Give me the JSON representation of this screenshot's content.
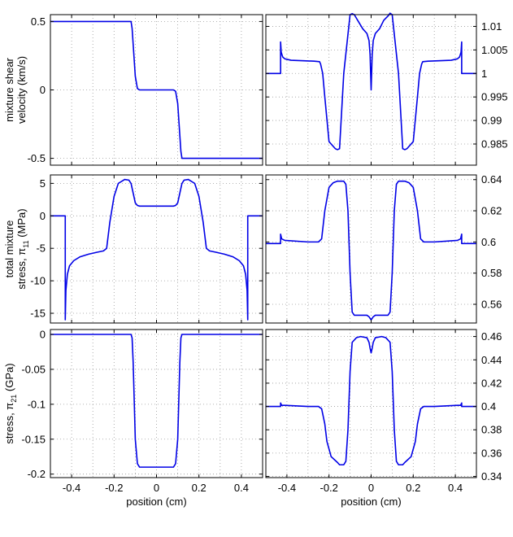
{
  "chart_data": [
    {
      "id": "p1",
      "type": "line",
      "ylabel_lines": [
        "mixture shear",
        "velocity (km/s)"
      ],
      "xlim": [
        -0.5,
        0.5
      ],
      "ylim": [
        -0.55,
        0.55
      ],
      "yticks": [
        -0.5,
        0,
        0.5
      ],
      "ytick_labels": [
        "-0.5",
        "0",
        "0.5"
      ],
      "y_axis_side": "left",
      "grid": true,
      "color": "#0000e6",
      "series": [
        {
          "x": [
            -0.5,
            -0.12,
            -0.115,
            -0.1,
            -0.09,
            -0.08,
            0.08,
            0.09,
            0.1,
            0.115,
            0.12,
            0.5
          ],
          "y": [
            0.5,
            0.5,
            0.45,
            0.1,
            0.01,
            0,
            0,
            -0.01,
            -0.1,
            -0.45,
            -0.5,
            -0.5
          ]
        }
      ]
    },
    {
      "id": "p2",
      "type": "line",
      "xlim": [
        -0.5,
        0.5
      ],
      "ylim": [
        0.9805,
        1.0125
      ],
      "yticks": [
        0.985,
        0.99,
        0.995,
        1,
        1.005,
        1.01
      ],
      "ytick_labels": [
        "0.985",
        "0.99",
        "0.995",
        "1",
        "1.005",
        "1.01"
      ],
      "y_axis_side": "right",
      "grid": true,
      "color": "#0000e6",
      "series": [
        {
          "x": [
            -0.5,
            -0.43,
            -0.43,
            -0.427,
            -0.42,
            -0.41,
            -0.38,
            -0.32,
            -0.27,
            -0.245,
            -0.24,
            -0.23,
            -0.22,
            -0.2,
            -0.17,
            -0.16,
            -0.15,
            -0.13,
            -0.1,
            -0.09,
            -0.08,
            -0.06,
            -0.04,
            -0.02,
            -0.01,
            -0.005,
            0,
            0.005,
            0.01,
            0.02,
            0.04,
            0.06,
            0.08,
            0.09,
            0.1,
            0.13,
            0.15,
            0.16,
            0.17,
            0.2,
            0.22,
            0.23,
            0.24,
            0.245,
            0.27,
            0.32,
            0.38,
            0.41,
            0.42,
            0.427,
            0.43,
            0.43,
            0.5
          ],
          "y": [
            1,
            1,
            1.0067,
            1.0045,
            1.0035,
            1.0031,
            1.0028,
            1.0027,
            1.0026,
            1.0025,
            1.002,
            1.0,
            0.995,
            0.9855,
            0.984,
            0.9838,
            0.984,
            1.0,
            1.0125,
            1.0127,
            1.0125,
            1.011,
            1.0095,
            1.0085,
            1.007,
            1.004,
            0.9965,
            1.004,
            1.007,
            1.0085,
            1.0095,
            1.0113,
            1.0122,
            1.0128,
            1.0125,
            1.0,
            0.984,
            0.9838,
            0.984,
            0.9855,
            0.995,
            1.0,
            1.002,
            1.0025,
            1.0026,
            1.0027,
            1.0028,
            1.0031,
            1.0035,
            1.0045,
            1.0067,
            1,
            1
          ]
        }
      ]
    },
    {
      "id": "p3",
      "type": "line",
      "ylabel_lines": [
        "total mixture",
        "stress, π",
        "11",
        " (MPa)"
      ],
      "xlim": [
        -0.5,
        0.5
      ],
      "ylim": [
        -16.5,
        6.3
      ],
      "yticks": [
        -15,
        -10,
        -5,
        0,
        5
      ],
      "ytick_labels": [
        "-15",
        "-10",
        "-5",
        "0",
        "5"
      ],
      "y_axis_side": "left",
      "grid": true,
      "color": "#0000e6",
      "series": [
        {
          "x": [
            -0.5,
            -0.43,
            -0.43,
            -0.427,
            -0.42,
            -0.41,
            -0.39,
            -0.36,
            -0.32,
            -0.28,
            -0.25,
            -0.235,
            -0.22,
            -0.2,
            -0.18,
            -0.16,
            -0.15,
            -0.13,
            -0.12,
            -0.11,
            -0.1,
            -0.09,
            -0.08,
            0.08,
            0.09,
            0.1,
            0.11,
            0.12,
            0.13,
            0.15,
            0.16,
            0.18,
            0.2,
            0.22,
            0.235,
            0.25,
            0.28,
            0.32,
            0.36,
            0.39,
            0.41,
            0.42,
            0.427,
            0.43,
            0.43,
            0.5
          ],
          "y": [
            0,
            0,
            -16,
            -11.5,
            -9,
            -7.7,
            -6.9,
            -6.3,
            -5.9,
            -5.6,
            -5.4,
            -5,
            -1,
            3,
            5,
            5.4,
            5.6,
            5.5,
            5,
            3.5,
            2,
            1.6,
            1.5,
            1.5,
            1.6,
            2,
            3.5,
            5,
            5.5,
            5.6,
            5.4,
            5,
            3,
            -1,
            -5,
            -5.4,
            -5.6,
            -5.9,
            -6.3,
            -6.9,
            -7.7,
            -9,
            -11.5,
            -16,
            0,
            0
          ]
        }
      ]
    },
    {
      "id": "p4",
      "type": "line",
      "ylabel_lines": [
        "stress, π",
        "21",
        " (GPa)"
      ],
      "xlim": [
        -0.5,
        0.5
      ],
      "ylim": [
        -0.205,
        0.007
      ],
      "yticks": [
        -0.2,
        -0.15,
        -0.1,
        -0.05,
        0
      ],
      "ytick_labels": [
        "-0.2",
        "-0.15",
        "-0.1",
        "-0.05",
        "0"
      ],
      "y_axis_side": "left",
      "grid": true,
      "color": "#0000e6",
      "series": [
        {
          "x": [
            -0.5,
            -0.12,
            -0.115,
            -0.11,
            -0.1,
            -0.09,
            -0.08,
            0.08,
            0.09,
            0.1,
            0.11,
            0.115,
            0.12,
            0.5
          ],
          "y": [
            0,
            0,
            -0.005,
            -0.04,
            -0.15,
            -0.185,
            -0.19,
            -0.19,
            -0.185,
            -0.15,
            -0.04,
            -0.005,
            0,
            0
          ]
        }
      ]
    },
    {
      "id": "p5",
      "type": "line",
      "xlim": [
        -0.5,
        0.5
      ],
      "ylim": [
        0.548,
        0.643
      ],
      "yticks": [
        0.56,
        0.58,
        0.6,
        0.62,
        0.64
      ],
      "ytick_labels": [
        "0.56",
        "0.58",
        "0.6",
        "0.62",
        "0.64"
      ],
      "y_axis_side": "right",
      "grid": true,
      "color": "#0000e6",
      "series": [
        {
          "x": [
            -0.5,
            -0.43,
            -0.43,
            -0.425,
            -0.41,
            -0.3,
            -0.25,
            -0.235,
            -0.22,
            -0.2,
            -0.18,
            -0.16,
            -0.13,
            -0.12,
            -0.11,
            -0.1,
            -0.09,
            -0.08,
            -0.02,
            -0.01,
            0,
            0.01,
            0.02,
            0.08,
            0.09,
            0.1,
            0.11,
            0.12,
            0.13,
            0.16,
            0.18,
            0.2,
            0.22,
            0.235,
            0.25,
            0.3,
            0.41,
            0.425,
            0.43,
            0.43,
            0.5
          ],
          "y": [
            0.599,
            0.599,
            0.605,
            0.602,
            0.601,
            0.6,
            0.6,
            0.602,
            0.62,
            0.635,
            0.638,
            0.639,
            0.639,
            0.637,
            0.62,
            0.58,
            0.555,
            0.553,
            0.553,
            0.552,
            0.55,
            0.552,
            0.553,
            0.553,
            0.555,
            0.58,
            0.62,
            0.637,
            0.639,
            0.639,
            0.638,
            0.635,
            0.62,
            0.602,
            0.6,
            0.6,
            0.601,
            0.602,
            0.605,
            0.599,
            0.599
          ]
        }
      ]
    },
    {
      "id": "p6",
      "type": "line",
      "xlabel": "position (cm)",
      "xlim": [
        -0.5,
        0.5
      ],
      "xticks": [
        -0.4,
        -0.2,
        0,
        0.2,
        0.4
      ],
      "xtick_labels": [
        "-0.4",
        "-0.2",
        "0",
        "0.2",
        "0.4"
      ],
      "ylim": [
        0.339,
        0.466
      ],
      "yticks": [
        0.34,
        0.36,
        0.38,
        0.4,
        0.42,
        0.44,
        0.46
      ],
      "ytick_labels": [
        "0.34",
        "0.36",
        "0.38",
        "0.4",
        "0.42",
        "0.44",
        "0.46"
      ],
      "y_axis_side": "right",
      "grid": true,
      "color": "#0000e6",
      "series": [
        {
          "x": [
            -0.5,
            -0.43,
            -0.43,
            -0.425,
            -0.41,
            -0.3,
            -0.25,
            -0.235,
            -0.22,
            -0.21,
            -0.19,
            -0.16,
            -0.15,
            -0.13,
            -0.12,
            -0.11,
            -0.1,
            -0.09,
            -0.07,
            -0.05,
            -0.02,
            -0.01,
            -0.005,
            0,
            0.005,
            0.01,
            0.02,
            0.05,
            0.07,
            0.09,
            0.1,
            0.11,
            0.12,
            0.13,
            0.15,
            0.16,
            0.19,
            0.21,
            0.22,
            0.235,
            0.25,
            0.3,
            0.41,
            0.425,
            0.43,
            0.43,
            0.5
          ],
          "y": [
            0.4,
            0.4,
            0.403,
            0.401,
            0.401,
            0.4,
            0.4,
            0.398,
            0.385,
            0.37,
            0.357,
            0.352,
            0.35,
            0.35,
            0.353,
            0.38,
            0.43,
            0.455,
            0.459,
            0.46,
            0.459,
            0.455,
            0.45,
            0.446,
            0.45,
            0.455,
            0.459,
            0.46,
            0.459,
            0.455,
            0.43,
            0.38,
            0.353,
            0.35,
            0.35,
            0.352,
            0.357,
            0.37,
            0.385,
            0.398,
            0.4,
            0.4,
            0.401,
            0.401,
            0.403,
            0.4,
            0.4
          ]
        }
      ]
    }
  ]
}
